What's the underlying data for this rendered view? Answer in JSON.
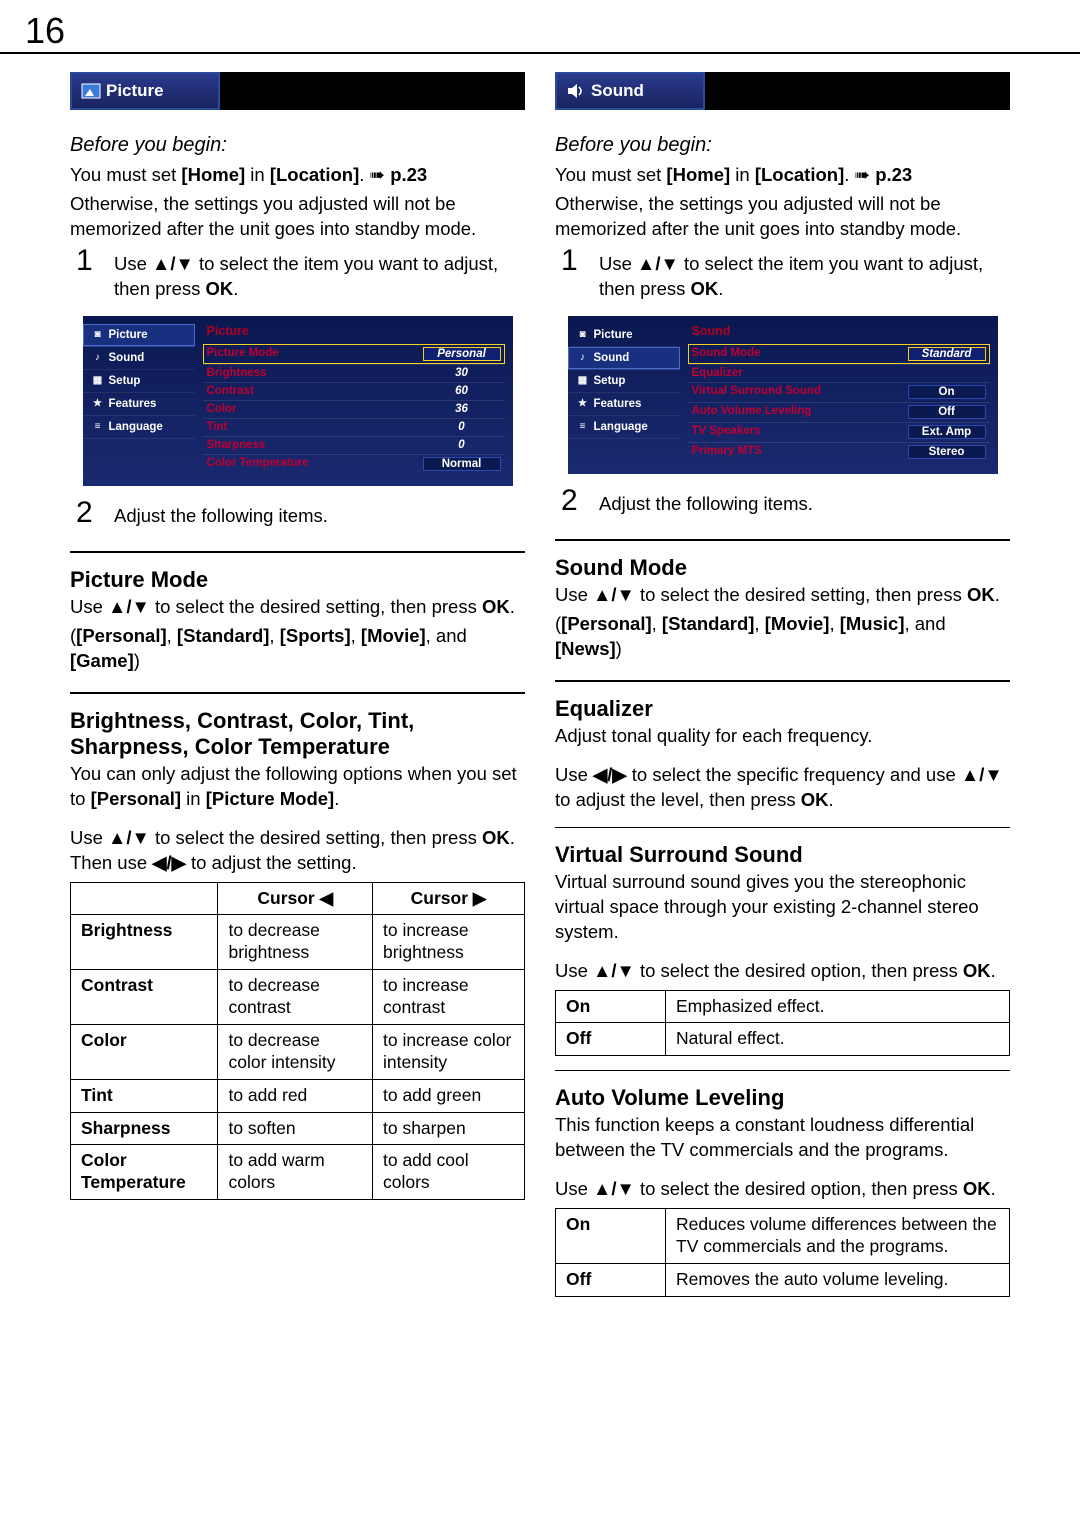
{
  "page_number": "16",
  "left": {
    "tab_icon": "picture-icon",
    "tab_label": "Picture",
    "before_begin": "Before you begin:",
    "home_line_a": "You must set ",
    "home_line_b": "[Home]",
    "home_line_c": " in ",
    "home_line_d": "[Location]",
    "home_line_e": ". ",
    "home_line_ref": "p.23",
    "otherwise": "Otherwise, the settings you adjusted will not be memorized after the unit goes into standby mode.",
    "step1": "Use ▲/▼ to select the item you want to adjust, then press OK.",
    "step2": "Adjust the following items.",
    "osd": {
      "title": "Picture",
      "nav": [
        "Picture",
        "Sound",
        "Setup",
        "Features",
        "Language"
      ],
      "sel": 0,
      "rows": [
        {
          "k": "Picture Mode",
          "v": "Personal",
          "hi": true
        },
        {
          "k": "Brightness",
          "v": "30"
        },
        {
          "k": "Contrast",
          "v": "60"
        },
        {
          "k": "Color",
          "v": "36"
        },
        {
          "k": "Tint",
          "v": "0"
        },
        {
          "k": "Sharpness",
          "v": "0"
        },
        {
          "k": "Color Temperature",
          "v": "Normal",
          "box": true
        }
      ]
    },
    "picture_mode_h": "Picture Mode",
    "picture_mode_p1": "Use ▲/▼ to select the desired setting, then press OK.",
    "picture_mode_p2": "([Personal], [Standard], [Sports], [Movie], and [Game])",
    "adj_h": "Brightness, Contrast, Color, Tint, Sharpness, Color Temperature",
    "adj_p1a": "You can only adjust the following options when you set to ",
    "adj_p1b": "[Personal]",
    "adj_p1c": " in ",
    "adj_p1d": "[Picture Mode]",
    "adj_p1e": ".",
    "adj_p2": "Use ▲/▼ to select the desired setting, then press OK. Then use ◀/▶ to adjust the setting.",
    "table": {
      "h1": "",
      "h2": "Cursor ◀",
      "h3": "Cursor ▶",
      "rows": [
        {
          "a": "Brightness",
          "b": "to decrease brightness",
          "c": "to increase brightness"
        },
        {
          "a": "Contrast",
          "b": "to decrease contrast",
          "c": "to increase contrast"
        },
        {
          "a": "Color",
          "b": "to decrease color intensity",
          "c": "to increase color intensity"
        },
        {
          "a": "Tint",
          "b": "to add red",
          "c": "to add green"
        },
        {
          "a": "Sharpness",
          "b": "to soften",
          "c": "to sharpen"
        },
        {
          "a": "Color Temperature",
          "b": "to add warm colors",
          "c": "to add cool colors"
        }
      ]
    }
  },
  "right": {
    "tab_label": "Sound",
    "before_begin": "Before you begin:",
    "home_line_a": "You must set ",
    "home_line_b": "[Home]",
    "home_line_c": " in ",
    "home_line_d": "[Location]",
    "home_line_e": ". ",
    "home_line_ref": "p.23",
    "otherwise": "Otherwise, the settings you adjusted will not be memorized after the unit goes into standby mode.",
    "step1": "Use ▲/▼ to select the item you want to adjust, then press OK.",
    "step2": "Adjust the following items.",
    "osd": {
      "title": "Sound",
      "nav": [
        "Picture",
        "Sound",
        "Setup",
        "Features",
        "Language"
      ],
      "sel": 1,
      "rows": [
        {
          "k": "Sound Mode",
          "v": "Standard",
          "hi": true
        },
        {
          "k": "Equalizer",
          "v": ""
        },
        {
          "k": "Virtual Surround Sound",
          "v": "On",
          "box": true
        },
        {
          "k": "Auto Volume Leveling",
          "v": "Off",
          "box": true
        },
        {
          "k": "TV Speakers",
          "v": "Ext. Amp",
          "box": true
        },
        {
          "k": "Primary MTS",
          "v": "Stereo",
          "box": true
        }
      ]
    },
    "sound_mode_h": "Sound Mode",
    "sound_mode_p1": "Use ▲/▼ to select the desired setting, then press OK.",
    "sound_mode_p2": "([Personal], [Standard], [Movie], [Music], and [News])",
    "eq_h": "Equalizer",
    "eq_p1": "Adjust tonal quality for each frequency.",
    "eq_p2": "Use ◀/▶ to select the specific frequency and use ▲/▼ to adjust the level, then press OK.",
    "vss_h": "Virtual Surround Sound",
    "vss_p1": "Virtual surround sound gives you the stereophonic virtual space through your existing 2-channel stereo system.",
    "vss_p2": "Use ▲/▼ to select the desired option, then press OK.",
    "vss_table": {
      "rows": [
        {
          "a": "On",
          "b": "Emphasized effect."
        },
        {
          "a": "Off",
          "b": "Natural effect."
        }
      ]
    },
    "avl_h": "Auto Volume Leveling",
    "avl_p1": "This function keeps a constant loudness differential between the TV commercials and the programs.",
    "avl_p2": "Use ▲/▼ to select the desired option, then press OK.",
    "avl_table": {
      "rows": [
        {
          "a": "On",
          "b": "Reduces volume differences between the TV commercials and the programs."
        },
        {
          "a": "Off",
          "b": "Removes the auto volume leveling."
        }
      ]
    }
  }
}
